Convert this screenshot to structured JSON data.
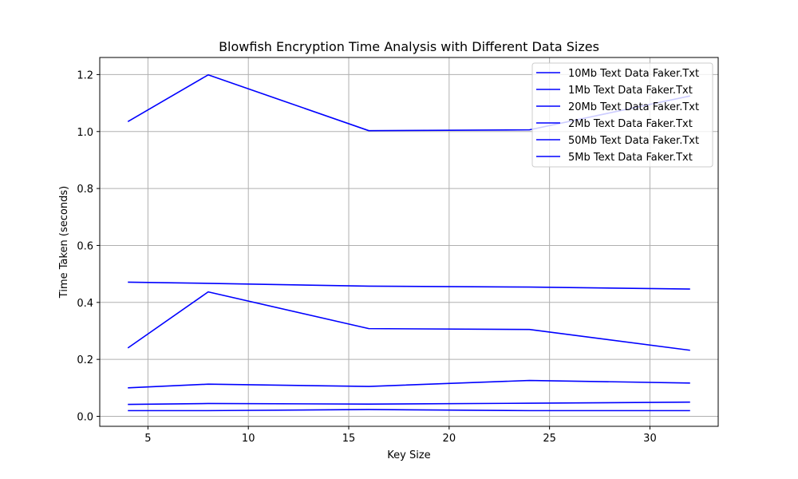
{
  "chart_data": {
    "type": "line",
    "title": "Blowfish Encryption Time Analysis with Different Data Sizes",
    "xlabel": "Key Size",
    "ylabel": "Time Taken (seconds)",
    "x": [
      4,
      8,
      16,
      24,
      32
    ],
    "xlim": [
      2.6,
      33.4
    ],
    "ylim": [
      -0.035,
      1.26
    ],
    "xticks": [
      5,
      10,
      15,
      20,
      25,
      30
    ],
    "yticks": [
      0.0,
      0.2,
      0.4,
      0.6,
      0.8,
      1.0,
      1.2
    ],
    "grid": true,
    "legend_position": "top-right",
    "line_color": "#0000ff",
    "series": [
      {
        "name": "10Mb Text Data Faker.Txt",
        "values": [
          0.24,
          0.437,
          0.308,
          0.305,
          0.232
        ]
      },
      {
        "name": "1Mb Text Data Faker.Txt",
        "values": [
          0.02,
          0.02,
          0.024,
          0.02,
          0.02
        ]
      },
      {
        "name": "20Mb Text Data Faker.Txt",
        "values": [
          0.471,
          0.467,
          0.457,
          0.454,
          0.447
        ]
      },
      {
        "name": "2Mb Text Data Faker.Txt",
        "values": [
          0.042,
          0.045,
          0.043,
          0.046,
          0.05
        ]
      },
      {
        "name": "50Mb Text Data Faker.Txt",
        "values": [
          1.035,
          1.199,
          1.003,
          1.006,
          1.125
        ]
      },
      {
        "name": "5Mb Text Data Faker.Txt",
        "values": [
          0.1,
          0.113,
          0.105,
          0.126,
          0.117
        ]
      }
    ]
  }
}
